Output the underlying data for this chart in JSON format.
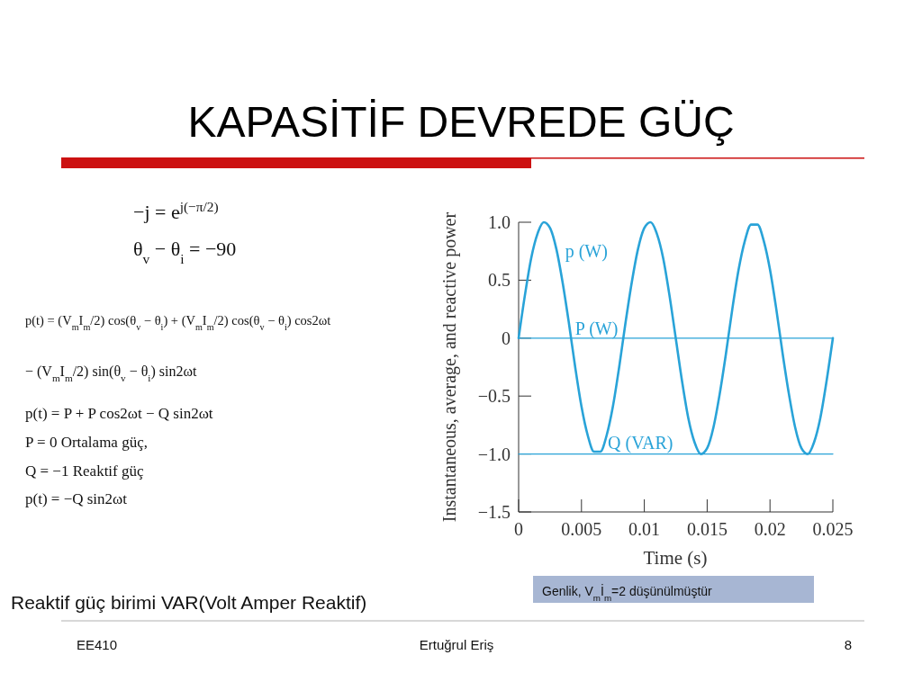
{
  "chart_data": {
    "type": "line",
    "title": "KAPASİTİF DEVREDE GÜÇ",
    "xlabel": "Time (s)",
    "ylabel": "Instantaneous, average, and reactive power",
    "xlim": [
      0,
      0.025
    ],
    "xticks": [
      0,
      0.005,
      0.01,
      0.015,
      0.02,
      0.025
    ],
    "ylim": [
      -1.5,
      1
    ],
    "yticks": [
      {
        "value": -1.5,
        "label": "−1.5"
      },
      {
        "value": -1,
        "label": "−1.0"
      },
      {
        "value": -0.5,
        "label": "−0.5"
      },
      0,
      0.5,
      {
        "value": 1,
        "label": "1.0"
      }
    ],
    "series": [
      {
        "name": "p (W)",
        "color": "#29a3d8",
        "x": [
          0,
          0.0005,
          0.001,
          0.0015,
          0.002,
          0.0025,
          0.003,
          0.0035,
          0.004,
          0.0045,
          0.005,
          0.0055,
          0.006,
          0.0065,
          0.007,
          0.0075,
          0.008,
          0.0085,
          0.009,
          0.0095,
          0.01,
          0.0105,
          0.011,
          0.0115,
          0.012,
          0.0125,
          0.013,
          0.0135,
          0.014,
          0.0145,
          0.015,
          0.0155,
          0.016,
          0.0165,
          0.017,
          0.0175,
          0.018,
          0.0185,
          0.019,
          0.0195,
          0.02,
          0.0205,
          0.021,
          0.0215,
          0.022,
          0.0225,
          0.023,
          0.0235,
          0.024,
          0.0245,
          0.025
        ],
        "values": [
          0,
          0.37,
          0.69,
          0.9,
          1,
          0.95,
          0.77,
          0.48,
          0.13,
          -0.25,
          -0.59,
          -0.84,
          -0.98,
          -0.98,
          -0.84,
          -0.59,
          -0.25,
          0.13,
          0.48,
          0.77,
          0.95,
          1,
          0.9,
          0.69,
          0.37,
          0,
          -0.37,
          -0.69,
          -0.9,
          -1,
          -0.95,
          -0.77,
          -0.48,
          -0.13,
          0.25,
          0.59,
          0.84,
          0.98,
          0.98,
          0.84,
          0.59,
          0.25,
          -0.13,
          -0.48,
          -0.77,
          -0.95,
          -1,
          -0.9,
          -0.69,
          -0.37,
          0
        ]
      },
      {
        "name": "P (W)",
        "color": "#29a3d8",
        "x": [
          0,
          0.025
        ],
        "values": [
          0,
          0
        ]
      },
      {
        "name": "Q (VAR)",
        "color": "#29a3d8",
        "x": [
          0,
          0.025
        ],
        "values": [
          -1,
          -1
        ]
      }
    ],
    "annotations": [
      "−j = e$^{j(−π/2)}$",
      "θ$_{v}$ − θ$_{i}$ = −90",
      "p(t) = (V$_{m}$I$_{m}$/2) cos(θ$_{v}$ − θ$_{i}$) + (V$_{m}$I$_{m}$/2) cos(θ$_{v}$ − θ$_{i}$) cos2ωt",
      "− (V$_{m}$I$_{m}$/2) sin(θ$_{v}$ − θ$_{i}$) sin2ωt",
      "p(t) = P + P cos2ωt − Q sin2ωt",
      "P = 0     Ortalama güç,",
      "Q = −1     Reaktif güç",
      "p(t) = −Q sin2ωt",
      "Reaktif güç birimi VAR(Volt Amper Reaktif)",
      "Genlik, V$_{m}$İ$_{m}$=2 düşünülmüştür",
      "EE410",
      "Ertuğrul Eriş",
      "8"
    ]
  }
}
